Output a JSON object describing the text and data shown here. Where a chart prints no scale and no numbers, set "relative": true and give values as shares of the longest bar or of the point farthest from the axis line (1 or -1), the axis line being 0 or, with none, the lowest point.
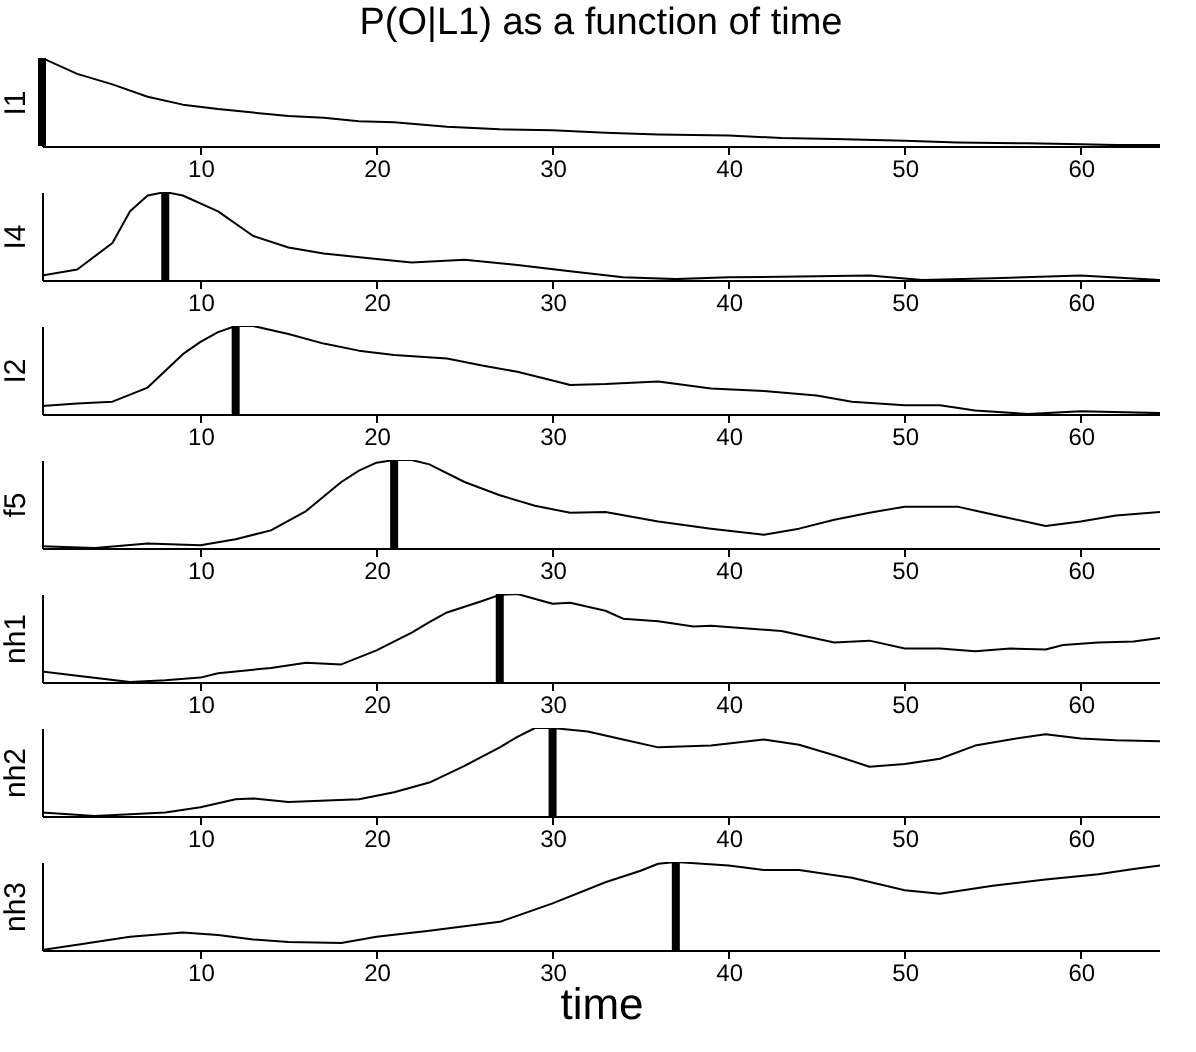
{
  "chart_data": [
    {
      "type": "line",
      "title": "P(O|L1) as a function of time",
      "ylabel": "I1",
      "relative": true,
      "tick_labels": "x",
      "xlim": [
        1,
        64.5
      ],
      "xticks": [
        10,
        20,
        30,
        40,
        50,
        60
      ],
      "ref_lines": [
        {
          "axis": "x",
          "value": 1,
          "color": "#000000"
        }
      ],
      "x": [
        1,
        3,
        5,
        7,
        9,
        11,
        13,
        15,
        17,
        19,
        21,
        24,
        27,
        30,
        33,
        36,
        40,
        43,
        46,
        50,
        53,
        57,
        60,
        62,
        64.5
      ],
      "series": [
        {
          "color": "#000000",
          "values": [
            1,
            0.82,
            0.7,
            0.56,
            0.47,
            0.42,
            0.38,
            0.34,
            0.32,
            0.28,
            0.27,
            0.22,
            0.19,
            0.18,
            0.15,
            0.13,
            0.12,
            0.09,
            0.08,
            0.06,
            0.04,
            0.03,
            0.02,
            0.01,
            0.01
          ]
        }
      ]
    },
    {
      "type": "line",
      "ylabel": "I4",
      "relative": true,
      "tick_labels": "x",
      "xlim": [
        1,
        64.5
      ],
      "xticks": [
        10,
        20,
        30,
        40,
        50,
        60
      ],
      "ref_lines": [
        {
          "axis": "x",
          "value": 8,
          "color": "#000000"
        }
      ],
      "x": [
        1,
        3,
        5,
        6,
        7,
        8,
        9,
        11,
        13,
        15,
        17,
        20,
        22,
        25,
        28,
        31,
        34,
        37,
        40,
        44,
        48,
        51,
        55,
        60,
        64.5
      ],
      "series": [
        {
          "color": "#000000",
          "values": [
            0.05,
            0.12,
            0.42,
            0.78,
            0.96,
            1,
            0.96,
            0.78,
            0.5,
            0.37,
            0.3,
            0.24,
            0.2,
            0.23,
            0.17,
            0.1,
            0.03,
            0.01,
            0.03,
            0.04,
            0.05,
            0,
            0.02,
            0.05,
            0
          ]
        }
      ]
    },
    {
      "type": "line",
      "ylabel": "I2",
      "relative": true,
      "tick_labels": "x",
      "xlim": [
        1,
        64.5
      ],
      "xticks": [
        10,
        20,
        30,
        40,
        50,
        60
      ],
      "ref_lines": [
        {
          "axis": "x",
          "value": 12,
          "color": "#000000"
        }
      ],
      "x": [
        1,
        3,
        5,
        7,
        9,
        10,
        11,
        12,
        13,
        15,
        17,
        19,
        21,
        24,
        26,
        28,
        30,
        31,
        33,
        36,
        39,
        42,
        45,
        47,
        50,
        52,
        54,
        57,
        60,
        64.5
      ],
      "series": [
        {
          "color": "#000000",
          "values": [
            0.09,
            0.12,
            0.14,
            0.3,
            0.68,
            0.82,
            0.93,
            1,
            1,
            0.91,
            0.8,
            0.72,
            0.67,
            0.63,
            0.55,
            0.48,
            0.38,
            0.33,
            0.34,
            0.37,
            0.29,
            0.26,
            0.21,
            0.14,
            0.1,
            0.1,
            0.04,
            0,
            0.03,
            0.01
          ]
        }
      ]
    },
    {
      "type": "line",
      "ylabel": "f5",
      "relative": true,
      "tick_labels": "x",
      "xlim": [
        1,
        64.5
      ],
      "xticks": [
        10,
        20,
        30,
        40,
        50,
        60
      ],
      "ref_lines": [
        {
          "axis": "x",
          "value": 21,
          "color": "#000000"
        }
      ],
      "x": [
        1,
        4,
        7,
        10,
        12,
        14,
        16,
        18,
        19,
        20,
        21,
        22,
        23,
        25,
        27,
        29,
        31,
        33,
        36,
        39,
        42,
        44,
        46,
        48,
        50,
        53,
        55,
        58,
        60,
        62,
        64.5
      ],
      "series": [
        {
          "color": "#000000",
          "values": [
            0.02,
            0,
            0.05,
            0.03,
            0.1,
            0.2,
            0.42,
            0.75,
            0.88,
            0.97,
            1,
            1,
            0.95,
            0.75,
            0.6,
            0.48,
            0.4,
            0.41,
            0.3,
            0.22,
            0.15,
            0.22,
            0.32,
            0.4,
            0.47,
            0.47,
            0.38,
            0.25,
            0.3,
            0.37,
            0.41
          ]
        }
      ]
    },
    {
      "type": "line",
      "ylabel": "nh1",
      "relative": true,
      "tick_labels": "x",
      "xlim": [
        1,
        64.5
      ],
      "xticks": [
        10,
        20,
        30,
        40,
        50,
        60
      ],
      "ref_lines": [
        {
          "axis": "x",
          "value": 27,
          "color": "#000000"
        }
      ],
      "x": [
        1,
        3,
        6,
        8,
        10,
        11,
        14,
        16,
        18,
        20,
        22,
        23,
        24,
        26,
        27,
        28,
        30,
        31,
        33,
        34,
        36,
        38,
        39,
        43,
        46,
        48,
        50,
        52,
        54,
        56,
        58,
        59,
        61,
        63,
        64.5
      ],
      "series": [
        {
          "color": "#000000",
          "values": [
            0.12,
            0.07,
            0,
            0.02,
            0.05,
            0.1,
            0.16,
            0.22,
            0.2,
            0.36,
            0.56,
            0.68,
            0.79,
            0.92,
            0.99,
            1,
            0.89,
            0.9,
            0.81,
            0.72,
            0.69,
            0.63,
            0.64,
            0.58,
            0.45,
            0.47,
            0.38,
            0.38,
            0.35,
            0.38,
            0.37,
            0.42,
            0.45,
            0.46,
            0.5
          ]
        }
      ]
    },
    {
      "type": "line",
      "ylabel": "nh2",
      "relative": true,
      "tick_labels": "x",
      "xlim": [
        1,
        64.5
      ],
      "xticks": [
        10,
        20,
        30,
        40,
        50,
        60
      ],
      "ref_lines": [
        {
          "axis": "x",
          "value": 30,
          "color": "#000000"
        }
      ],
      "x": [
        1,
        4,
        8,
        10,
        12,
        13,
        15,
        19,
        21,
        23,
        25,
        27,
        28,
        29,
        30,
        32,
        34,
        36,
        39,
        42,
        44,
        46,
        48,
        50,
        52,
        54,
        56,
        58,
        60,
        62,
        64.5
      ],
      "series": [
        {
          "color": "#000000",
          "values": [
            0.04,
            0,
            0.04,
            0.1,
            0.19,
            0.2,
            0.16,
            0.19,
            0.27,
            0.38,
            0.57,
            0.78,
            0.9,
            1,
            1,
            0.96,
            0.87,
            0.78,
            0.8,
            0.87,
            0.81,
            0.69,
            0.56,
            0.59,
            0.65,
            0.8,
            0.87,
            0.93,
            0.88,
            0.86,
            0.85
          ]
        }
      ]
    },
    {
      "type": "line",
      "ylabel": "nh3",
      "xlabel": "time",
      "relative": true,
      "tick_labels": "x",
      "xlim": [
        1,
        64.5
      ],
      "xticks": [
        10,
        20,
        30,
        40,
        50,
        60
      ],
      "ref_lines": [
        {
          "axis": "x",
          "value": 37,
          "color": "#000000"
        }
      ],
      "x": [
        1,
        3,
        6,
        9,
        11,
        13,
        15,
        18,
        20,
        23,
        27,
        30,
        33,
        35,
        36,
        37,
        40,
        42,
        44,
        47,
        50,
        52,
        55,
        58,
        61,
        63,
        64.5
      ],
      "series": [
        {
          "color": "#000000",
          "values": [
            0,
            0.06,
            0.15,
            0.2,
            0.17,
            0.12,
            0.09,
            0.08,
            0.15,
            0.22,
            0.32,
            0.53,
            0.77,
            0.9,
            0.98,
            1,
            0.96,
            0.91,
            0.91,
            0.82,
            0.68,
            0.64,
            0.73,
            0.8,
            0.86,
            0.92,
            0.96
          ]
        }
      ]
    }
  ]
}
